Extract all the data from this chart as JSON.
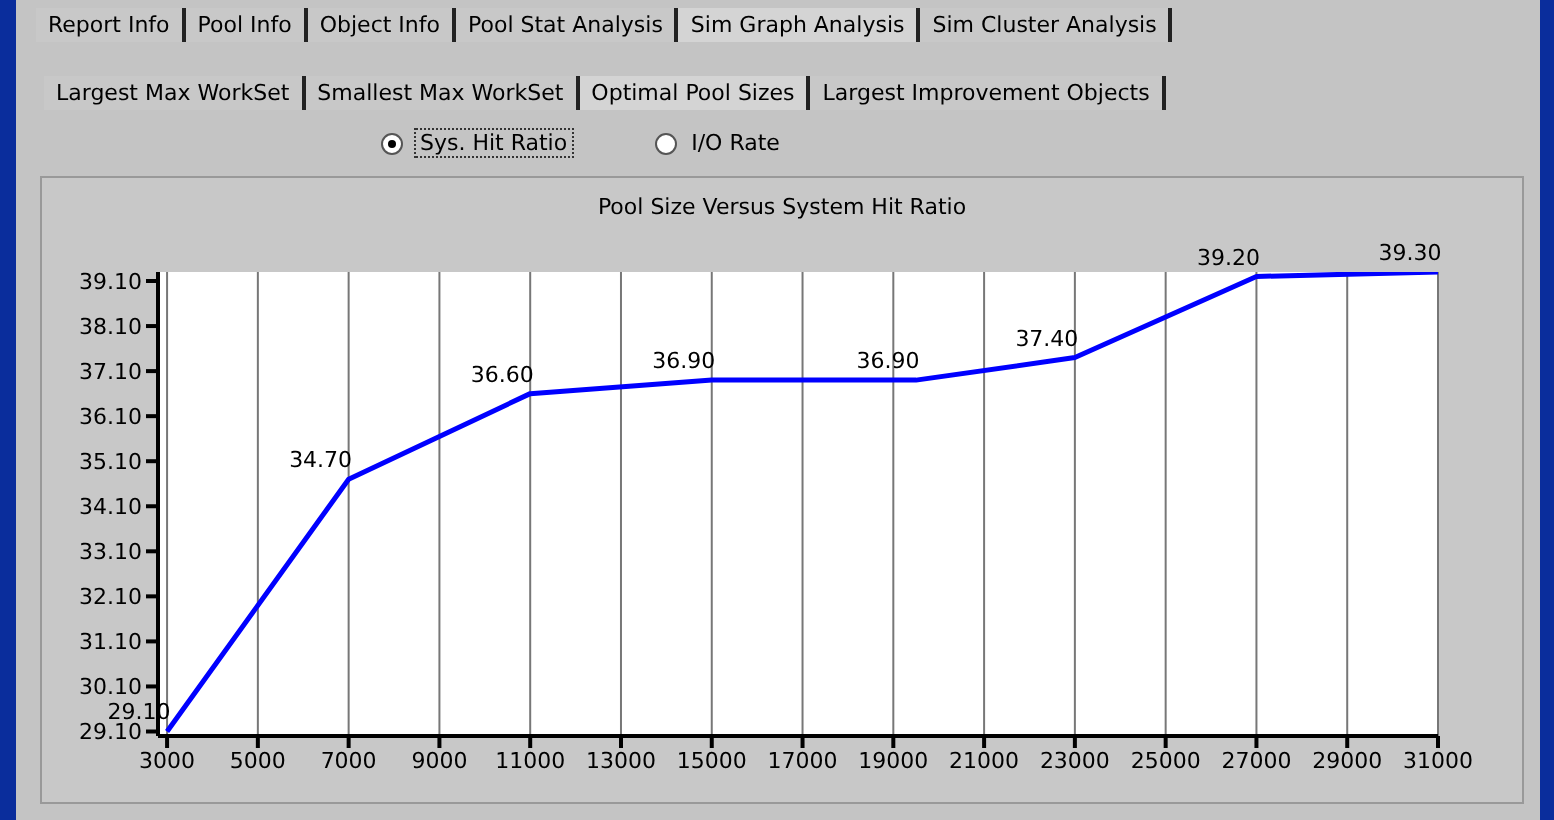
{
  "chart_data": {
    "type": "line",
    "title": "Pool Size Versus System Hit Ratio",
    "x": [
      3000,
      7000,
      11000,
      15000,
      19500,
      23000,
      27000,
      31000
    ],
    "series": [
      {
        "color": "#0000ff",
        "values": [
          29.1,
          34.7,
          36.6,
          36.9,
          36.9,
          37.4,
          39.2,
          39.3
        ]
      }
    ],
    "xlim": [
      2800,
      31000
    ],
    "xticks": [
      3000,
      5000,
      7000,
      9000,
      11000,
      13000,
      15000,
      17000,
      19000,
      21000,
      23000,
      25000,
      27000,
      29000,
      31000
    ],
    "ylim": [
      29.0,
      39.3
    ],
    "yticks": [
      {
        "value": 29.1,
        "label": "29.10"
      },
      {
        "value": 30.1,
        "label": "30.10"
      },
      {
        "value": 31.1,
        "label": "31.10"
      },
      {
        "value": 32.1,
        "label": "32.10"
      },
      {
        "value": 33.1,
        "label": "33.10"
      },
      {
        "value": 34.1,
        "label": "34.10"
      },
      {
        "value": 35.1,
        "label": "35.10"
      },
      {
        "value": 36.1,
        "label": "36.10"
      },
      {
        "value": 37.1,
        "label": "37.10"
      },
      {
        "value": 38.1,
        "label": "38.10"
      },
      {
        "value": 39.1,
        "label": "39.10"
      }
    ],
    "value_labels": [
      "29.10",
      "34.70",
      "36.60",
      "36.90",
      "36.90",
      "37.40",
      "39.20",
      "39.30"
    ],
    "grid": "x",
    "legend": false,
    "annotations": [
      "Report Info",
      "Pool Info",
      "Object Info",
      "Pool Stat Analysis",
      "Sim Graph Analysis",
      "Sim Cluster Analysis",
      "Largest Max WorkSet",
      "Smallest Max WorkSet",
      "Optimal Pool Sizes",
      "Largest Improvement Objects",
      "Sys. Hit Ratio",
      "I/O Rate"
    ]
  }
}
